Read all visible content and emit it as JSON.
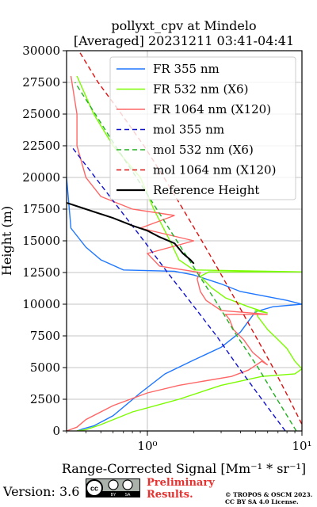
{
  "chart_data": {
    "type": "line",
    "title": "pollyxt_cpv at Mindelo",
    "subtitle": "[Averaged] 20231211 03:41-04:41",
    "xlabel": "Range-Corrected Signal [Mm⁻¹ * sr⁻¹]",
    "ylabel": "Height (m)",
    "x_scale": "log",
    "xlim": [
      0.3,
      10
    ],
    "ylim": [
      0,
      30000
    ],
    "x_ticks": [
      {
        "value": 1,
        "label": "10⁰"
      },
      {
        "value": 10,
        "label": "10¹"
      }
    ],
    "y_ticks": [
      0,
      2500,
      5000,
      7500,
      10000,
      12500,
      15000,
      17500,
      20000,
      22500,
      25000,
      27500,
      30000
    ],
    "y_tick_labels": [
      "0",
      "2500",
      "5000",
      "7500",
      "10000",
      "12500",
      "15000",
      "17500",
      "20000",
      "22500",
      "25000",
      "27500",
      "30000"
    ],
    "grid": true,
    "legend_position": "top-right",
    "series": [
      {
        "name": "FR 355 nm",
        "color": "#1f77ff",
        "style": "solid",
        "points": [
          [
            0.35,
            0
          ],
          [
            0.38,
            150
          ],
          [
            0.45,
            400
          ],
          [
            0.6,
            1200
          ],
          [
            0.9,
            3000
          ],
          [
            1.3,
            4500
          ],
          [
            2.0,
            5600
          ],
          [
            3.0,
            6600
          ],
          [
            4.0,
            7800
          ],
          [
            4.6,
            8800
          ],
          [
            5.0,
            9400
          ],
          [
            6.5,
            9800
          ],
          [
            10.0,
            10000
          ],
          [
            8.0,
            10300
          ],
          [
            4.0,
            11000
          ],
          [
            3.0,
            11600
          ],
          [
            2.0,
            12300
          ],
          [
            1.5,
            12600
          ],
          [
            0.7,
            12700
          ],
          [
            0.5,
            13500
          ],
          [
            0.4,
            14500
          ],
          [
            0.32,
            16000
          ],
          [
            0.3,
            20000
          ]
        ]
      },
      {
        "name": "FR 532 nm (X6)",
        "color": "#7cfc00",
        "style": "solid",
        "points": [
          [
            0.35,
            0
          ],
          [
            0.4,
            100
          ],
          [
            0.5,
            500
          ],
          [
            0.8,
            1500
          ],
          [
            1.6,
            2500
          ],
          [
            3.0,
            3600
          ],
          [
            5.5,
            4300
          ],
          [
            9.0,
            4500
          ],
          [
            10.0,
            4900
          ],
          [
            9.0,
            5500
          ],
          [
            8.0,
            6500
          ],
          [
            7.0,
            7200
          ],
          [
            6.0,
            8000
          ],
          [
            5.2,
            9000
          ],
          [
            5.0,
            9500
          ],
          [
            6.0,
            9300
          ],
          [
            4.5,
            9800
          ],
          [
            3.2,
            10500
          ],
          [
            2.6,
            11300
          ],
          [
            2.2,
            12200
          ],
          [
            2.5,
            12550
          ],
          [
            10,
            12550
          ],
          [
            2.0,
            12700
          ],
          [
            1.6,
            13500
          ],
          [
            1.4,
            15000
          ],
          [
            1.1,
            17500
          ],
          [
            0.9,
            20000
          ],
          [
            0.6,
            22500
          ],
          [
            0.45,
            25000
          ],
          [
            0.35,
            28000
          ]
        ]
      },
      {
        "name": "FR 1064 nm (X120)",
        "color": "#ff6666",
        "style": "solid",
        "points": [
          [
            0.3,
            0
          ],
          [
            0.35,
            300
          ],
          [
            0.4,
            900
          ],
          [
            0.6,
            2000
          ],
          [
            1.0,
            3000
          ],
          [
            1.6,
            3600
          ],
          [
            2.5,
            4000
          ],
          [
            3.5,
            4300
          ],
          [
            4.5,
            4800
          ],
          [
            5.5,
            5500
          ],
          [
            6.0,
            5200
          ],
          [
            4.8,
            6200
          ],
          [
            4.2,
            7200
          ],
          [
            3.6,
            8000
          ],
          [
            3.4,
            8800
          ],
          [
            3.2,
            9200
          ],
          [
            6.0,
            9200
          ],
          [
            3.0,
            9500
          ],
          [
            2.4,
            10300
          ],
          [
            2.2,
            11000
          ],
          [
            2.1,
            12000
          ],
          [
            2.2,
            12500
          ],
          [
            1.2,
            13000
          ],
          [
            1.0,
            14000
          ],
          [
            2.0,
            15000
          ],
          [
            0.9,
            16000
          ],
          [
            1.5,
            17000
          ],
          [
            0.8,
            17500
          ],
          [
            0.5,
            18500
          ],
          [
            0.4,
            20000
          ],
          [
            0.35,
            22500
          ],
          [
            0.35,
            25000
          ],
          [
            0.32,
            28000
          ]
        ]
      },
      {
        "name": "mol 355 nm",
        "color": "#1010d0",
        "style": "dashed",
        "points": [
          [
            7.8,
            0
          ],
          [
            5.5,
            2500
          ],
          [
            3.9,
            5000
          ],
          [
            2.8,
            7500
          ],
          [
            1.95,
            10000
          ],
          [
            1.35,
            12500
          ],
          [
            0.95,
            15000
          ],
          [
            0.66,
            17500
          ],
          [
            0.46,
            20000
          ],
          [
            0.32,
            22500
          ]
        ]
      },
      {
        "name": "mol 532 nm (X6)",
        "color": "#20b020",
        "style": "dashed",
        "points": [
          [
            9.2,
            0
          ],
          [
            6.9,
            2500
          ],
          [
            5.2,
            5000
          ],
          [
            3.8,
            7500
          ],
          [
            2.85,
            10000
          ],
          [
            2.1,
            12500
          ],
          [
            1.55,
            15000
          ],
          [
            1.15,
            17500
          ],
          [
            0.85,
            20000
          ],
          [
            0.62,
            22500
          ],
          [
            0.46,
            25000
          ],
          [
            0.34,
            27500
          ]
        ]
      },
      {
        "name": "mol 1064 nm (X120)",
        "color": "#e01010",
        "style": "dashed",
        "points": [
          [
            10.5,
            0
          ],
          [
            8.3,
            2500
          ],
          [
            6.5,
            5000
          ],
          [
            5.0,
            7500
          ],
          [
            3.85,
            10000
          ],
          [
            2.95,
            12500
          ],
          [
            2.25,
            15000
          ],
          [
            1.7,
            17500
          ],
          [
            1.28,
            20000
          ],
          [
            0.95,
            22500
          ],
          [
            0.68,
            25000
          ],
          [
            0.48,
            27500
          ],
          [
            0.36,
            30000
          ]
        ]
      },
      {
        "name": "Reference Height",
        "color": "#000000",
        "style": "solid",
        "points": [
          [
            0.3,
            18000
          ],
          [
            0.4,
            17500
          ],
          [
            0.6,
            16800
          ],
          [
            0.8,
            16200
          ],
          [
            1.0,
            15800
          ],
          [
            1.2,
            15300
          ],
          [
            1.5,
            14800
          ],
          [
            1.7,
            14000
          ],
          [
            1.9,
            13500
          ],
          [
            2.0,
            13200
          ]
        ]
      }
    ]
  },
  "footer": {
    "version": "Version: 3.6",
    "preliminary_line1": "Preliminary",
    "preliminary_line2": "Results.",
    "copyright_line1": "© TROPOS & OSCM 2023.",
    "copyright_line2": "CC BY SA 4.0 License.",
    "cc_badge_text": "cc BY SA"
  }
}
